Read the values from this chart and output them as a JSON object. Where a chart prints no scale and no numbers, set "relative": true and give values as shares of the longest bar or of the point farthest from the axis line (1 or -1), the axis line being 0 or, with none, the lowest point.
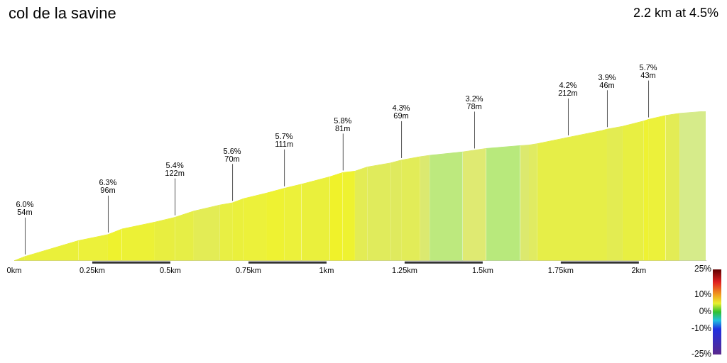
{
  "chart_data": {
    "type": "area",
    "title": "col de la savine",
    "subtitle": "2.2 km at 4.5%",
    "relative": true,
    "series": [
      {
        "color": "#e8ef3c",
        "x": [
          0,
          0.034
        ],
        "values": [
          0,
          0.028
        ]
      },
      {
        "color": "#eaf03a",
        "x": [
          0.034,
          0.205
        ],
        "values": [
          0.028,
          0.134
        ]
      },
      {
        "color": "#ecf13a",
        "x": [
          0.205,
          0.3
        ],
        "values": [
          0.134,
          0.175
        ]
      },
      {
        "color": "#eef22e",
        "x": [
          0.3,
          0.345
        ],
        "values": [
          0.175,
          0.212
        ]
      },
      {
        "color": "#ecf136",
        "x": [
          0.345,
          0.45
        ],
        "values": [
          0.212,
          0.258
        ]
      },
      {
        "color": "#e8ee40",
        "x": [
          0.45,
          0.514
        ],
        "values": [
          0.258,
          0.29
        ]
      },
      {
        "color": "#e6ee46",
        "x": [
          0.514,
          0.575
        ],
        "values": [
          0.29,
          0.332
        ]
      },
      {
        "color": "#e3ec55",
        "x": [
          0.575,
          0.659
        ],
        "values": [
          0.332,
          0.373
        ]
      },
      {
        "color": "#e8ef44",
        "x": [
          0.659,
          0.698
        ],
        "values": [
          0.373,
          0.387
        ]
      },
      {
        "color": "#eaf03c",
        "x": [
          0.698,
          0.734
        ],
        "values": [
          0.387,
          0.415
        ]
      },
      {
        "color": "#ecf13a",
        "x": [
          0.734,
          0.807
        ],
        "values": [
          0.415,
          0.452
        ]
      },
      {
        "color": "#eef232",
        "x": [
          0.807,
          0.864
        ],
        "values": [
          0.452,
          0.484
        ]
      },
      {
        "color": "#ecf13a",
        "x": [
          0.864,
          0.92
        ],
        "values": [
          0.484,
          0.512
        ]
      },
      {
        "color": "#eaf03c",
        "x": [
          0.92,
          1.011
        ],
        "values": [
          0.512,
          0.562
        ]
      },
      {
        "color": "#f0f22a",
        "x": [
          1.011,
          1.052
        ],
        "values": [
          0.562,
          0.59
        ]
      },
      {
        "color": "#eef230",
        "x": [
          1.052,
          1.091
        ],
        "values": [
          0.59,
          0.599
        ]
      },
      {
        "color": "#e3ec55",
        "x": [
          1.091,
          1.13
        ],
        "values": [
          0.599,
          0.627
        ]
      },
      {
        "color": "#e0eb5c",
        "x": [
          1.13,
          1.205
        ],
        "values": [
          0.627,
          0.654
        ]
      },
      {
        "color": "#dfea5e",
        "x": [
          1.205,
          1.239
        ],
        "values": [
          0.654,
          0.673
        ]
      },
      {
        "color": "#e2ec58",
        "x": [
          1.239,
          1.3
        ],
        "values": [
          0.673,
          0.696
        ]
      },
      {
        "color": "#dbe970",
        "x": [
          1.3,
          1.33
        ],
        "values": [
          0.696,
          0.705
        ]
      },
      {
        "color": "#bde97e",
        "x": [
          1.33,
          1.436
        ],
        "values": [
          0.705,
          0.728
        ]
      },
      {
        "color": "#dfea72",
        "x": [
          1.436,
          1.511
        ],
        "values": [
          0.728,
          0.751
        ]
      },
      {
        "color": "#b8e97c",
        "x": [
          1.511,
          1.62
        ],
        "values": [
          0.751,
          0.77
        ]
      },
      {
        "color": "#dce96e",
        "x": [
          1.62,
          1.648
        ],
        "values": [
          0.77,
          0.774
        ]
      },
      {
        "color": "#e0eb62",
        "x": [
          1.648,
          1.675
        ],
        "values": [
          0.774,
          0.783
        ]
      },
      {
        "color": "#e6ee48",
        "x": [
          1.675,
          1.773,
          1.882,
          1.898
        ],
        "values": [
          0.783,
          0.825,
          0.871,
          0.88
        ]
      },
      {
        "color": "#e3ec52",
        "x": [
          1.898,
          1.948
        ],
        "values": [
          0.88,
          0.899
        ]
      },
      {
        "color": "#e8ef42",
        "x": [
          1.948,
          2.016
        ],
        "values": [
          0.899,
          0.935
        ]
      },
      {
        "color": "#eef232",
        "x": [
          2.016,
          2.03
        ],
        "values": [
          0.935,
          0.945
        ]
      },
      {
        "color": "#ecf13a",
        "x": [
          2.03,
          2.086
        ],
        "values": [
          0.945,
          0.972
        ]
      },
      {
        "color": "#e3ec55",
        "x": [
          2.086,
          2.13
        ],
        "values": [
          0.972,
          0.986
        ]
      },
      {
        "color": "#d6eb8a",
        "x": [
          2.13,
          2.214
        ],
        "values": [
          0.986,
          1
        ]
      }
    ],
    "xlim": [
      0,
      2.214
    ],
    "xticks": [
      {
        "value": 0,
        "label": "0km"
      },
      {
        "value": 0.25,
        "label": "0.25km"
      },
      {
        "value": 0.5,
        "label": "0.5km"
      },
      {
        "value": 0.75,
        "label": "0.75km"
      },
      {
        "value": 1,
        "label": "1km"
      },
      {
        "value": 1.25,
        "label": "1.25km"
      },
      {
        "value": 1.5,
        "label": "1.5km"
      },
      {
        "value": 1.75,
        "label": "1.75km"
      },
      {
        "value": 2,
        "label": "2km"
      }
    ],
    "annotations": [
      {
        "text": "6.0%\n54m",
        "x": 0.034,
        "y": 0.028
      },
      {
        "text": "6.3%\n96m",
        "x": 0.3,
        "y": 0.175
      },
      {
        "text": "5.4%\n122m",
        "x": 0.514,
        "y": 0.29
      },
      {
        "text": "5.6%\n70m",
        "x": 0.698,
        "y": 0.387
      },
      {
        "text": "5.7%\n111m",
        "x": 0.864,
        "y": 0.484
      },
      {
        "text": "5.8%\n81m",
        "x": 1.052,
        "y": 0.59
      },
      {
        "text": "4.3%\n69m",
        "x": 1.239,
        "y": 0.673
      },
      {
        "text": "3.2%\n78m",
        "x": 1.473,
        "y": 0.737
      },
      {
        "text": "4.2%\n212m",
        "x": 1.773,
        "y": 0.825
      },
      {
        "text": "3.9%\n46m",
        "x": 1.898,
        "y": 0.88
      },
      {
        "text": "5.7%\n43m",
        "x": 2.03,
        "y": 0.945
      }
    ],
    "clim": [
      -25,
      25
    ],
    "cticks": [
      {
        "value": 25,
        "label": "25%"
      },
      {
        "value": 10,
        "label": "10%"
      },
      {
        "value": 0,
        "label": "0%"
      },
      {
        "value": -10,
        "label": "-10%"
      },
      {
        "value": -25,
        "label": "-25%"
      }
    ]
  }
}
